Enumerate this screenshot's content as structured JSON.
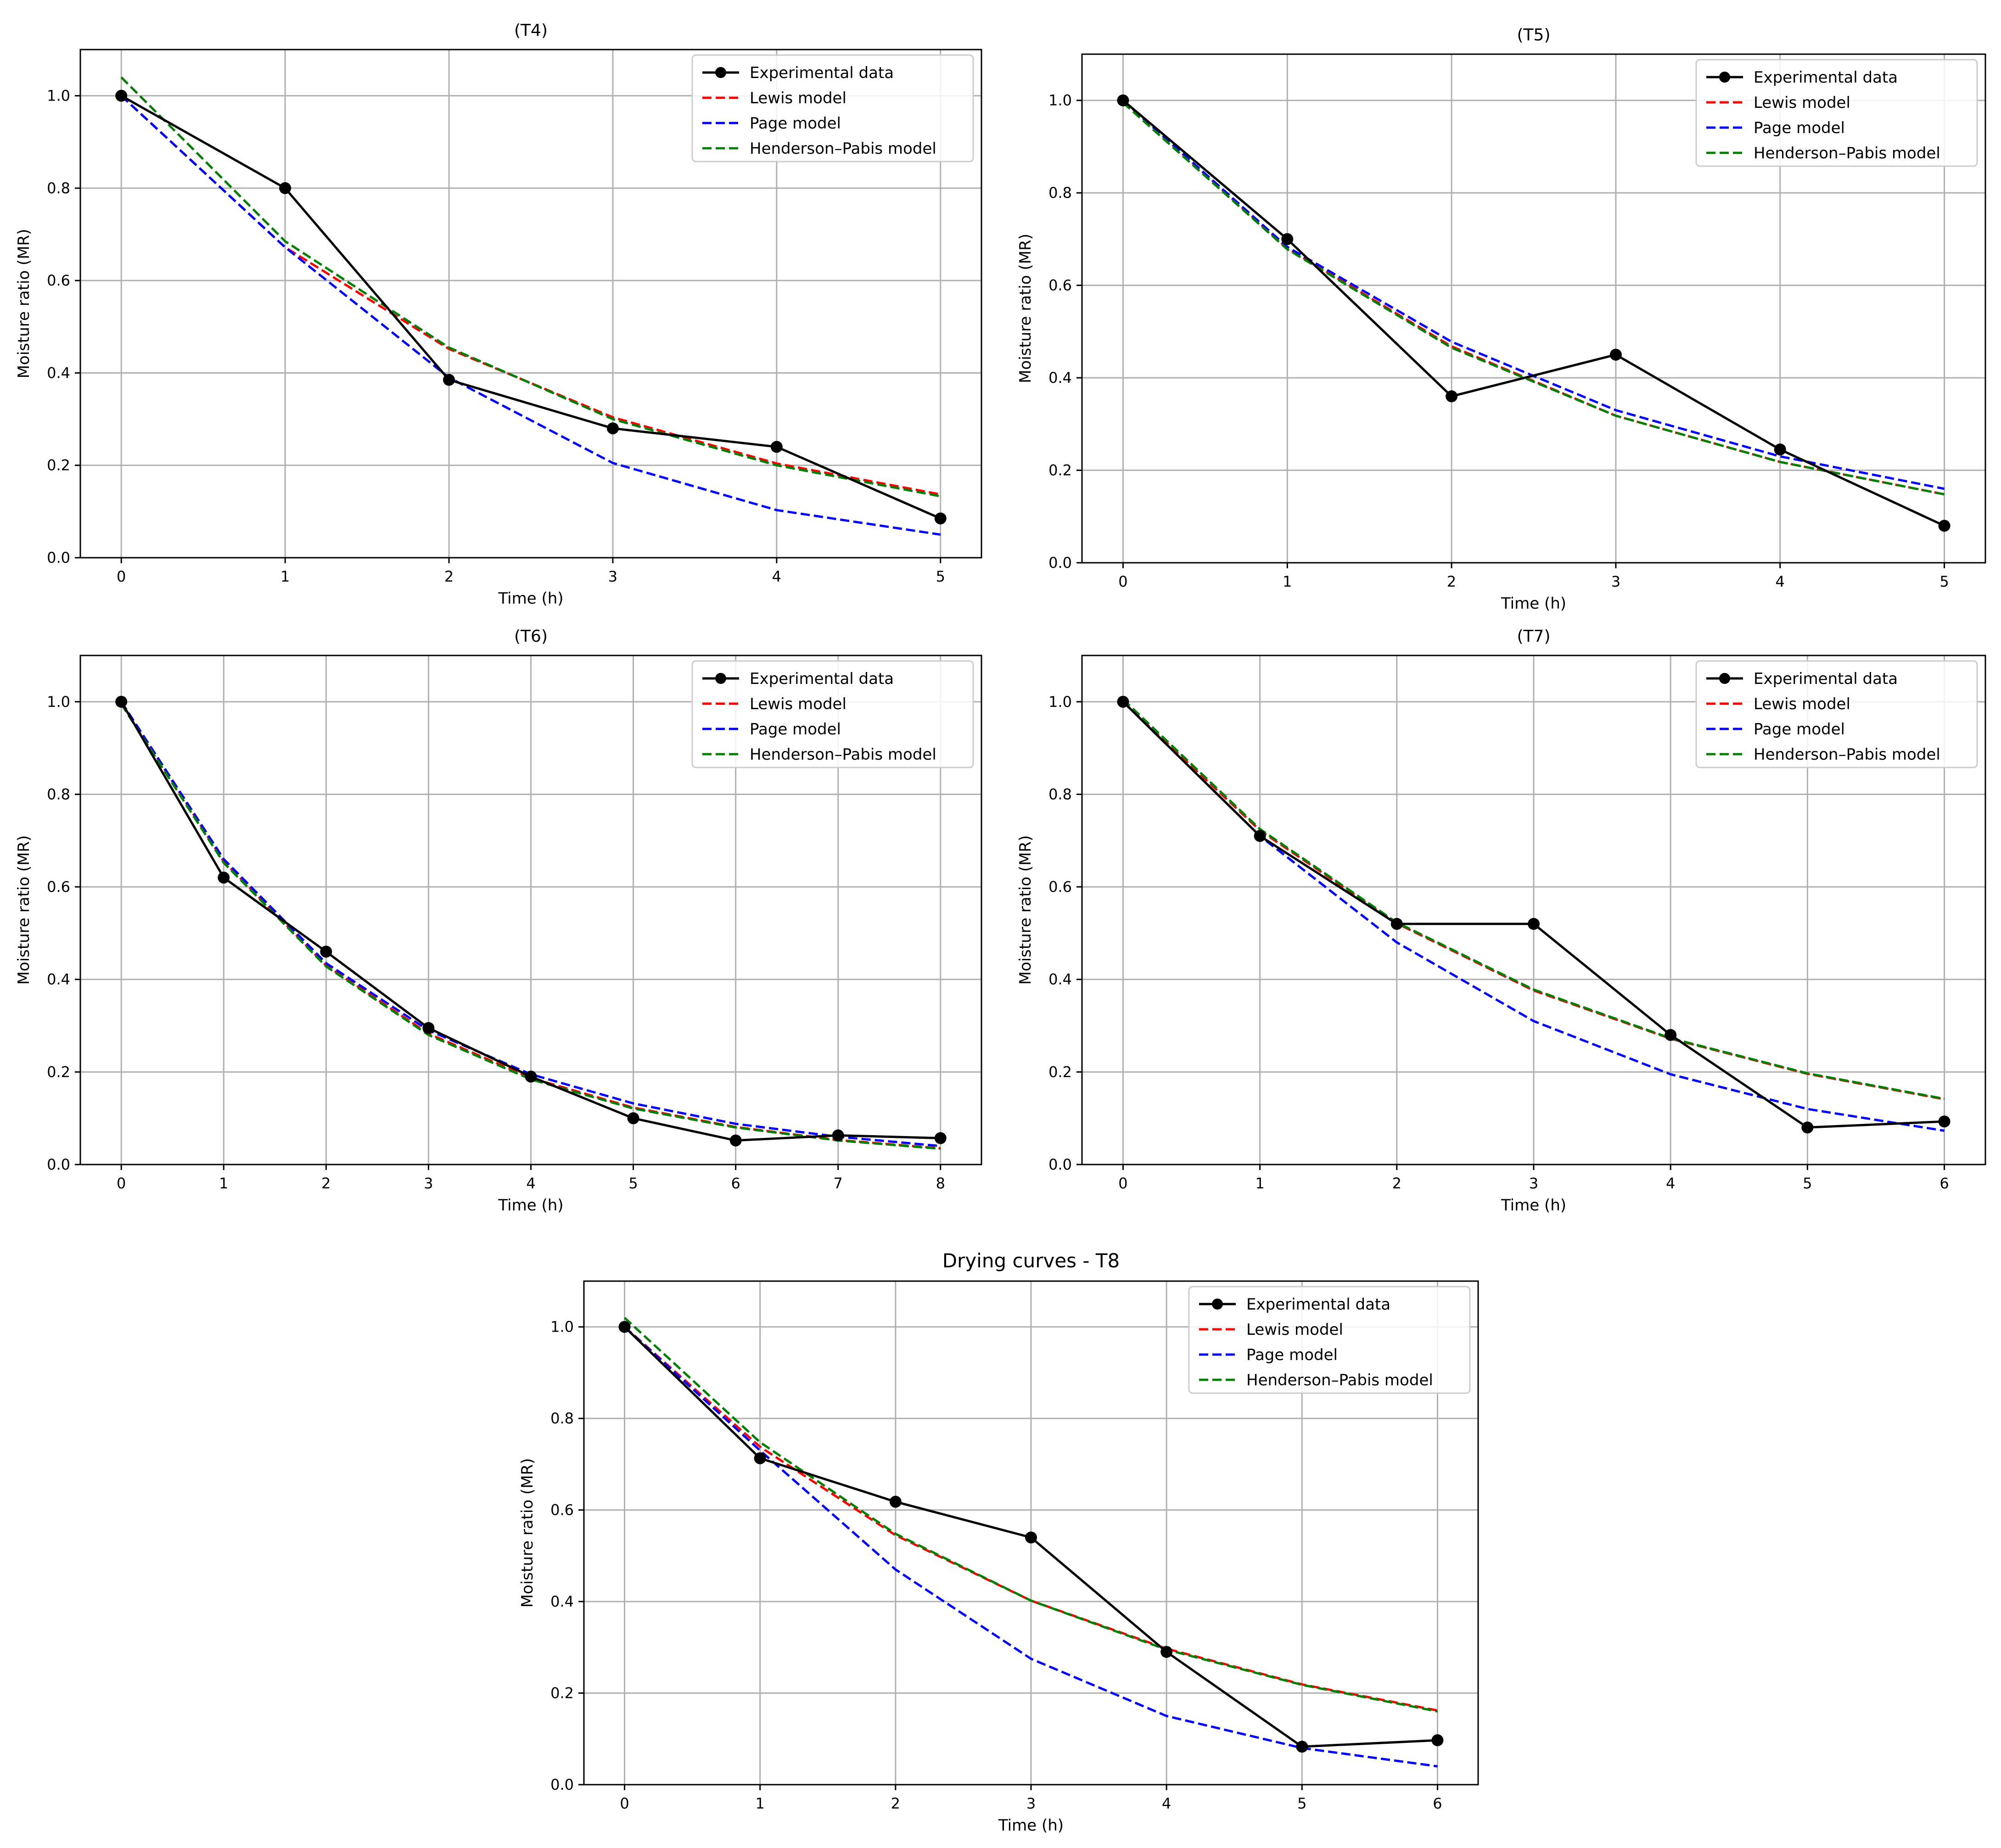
{
  "chart_data": [
    {
      "type": "line",
      "title": "(T4)",
      "xlabel": "Time (h)",
      "ylabel": "Moisture ratio (MR)",
      "xlim": [
        -0.25,
        5.25
      ],
      "ylim": [
        0,
        1.1
      ],
      "xticks": [
        "0",
        "1",
        "2",
        "3",
        "4",
        "5"
      ],
      "yticks": [
        "0.0",
        "0.2",
        "0.4",
        "0.6",
        "0.8",
        "1.0"
      ],
      "grid": true,
      "legend_position": "top-right",
      "x": [
        0,
        1,
        2,
        3,
        4,
        5
      ],
      "series": [
        {
          "name": "Experimental data",
          "style": "solid-marker",
          "color": "#000000",
          "values": [
            1.0,
            0.8,
            0.385,
            0.28,
            0.24,
            0.085
          ]
        },
        {
          "name": "Lewis model",
          "style": "dashed",
          "color": "#ff0000",
          "values": [
            1.0,
            0.672,
            0.452,
            0.304,
            0.204,
            0.137
          ]
        },
        {
          "name": "Page model",
          "style": "dashed",
          "color": "#0000ff",
          "values": [
            1.0,
            0.672,
            0.39,
            0.205,
            0.103,
            0.05
          ]
        },
        {
          "name": "Henderson–Pabis model",
          "style": "dashed",
          "color": "#008000",
          "values": [
            1.04,
            0.685,
            0.455,
            0.3,
            0.2,
            0.133
          ]
        }
      ]
    },
    {
      "type": "line",
      "title": "(T5)",
      "xlabel": "Time (h)",
      "ylabel": "Moisture ratio (MR)",
      "xlim": [
        -0.25,
        5.25
      ],
      "ylim": [
        0,
        1.1
      ],
      "xticks": [
        "0",
        "1",
        "2",
        "3",
        "4",
        "5"
      ],
      "yticks": [
        "0.0",
        "0.2",
        "0.4",
        "0.6",
        "0.8",
        "1.0"
      ],
      "grid": true,
      "legend_position": "top-right",
      "x": [
        0,
        1,
        2,
        3,
        4,
        5
      ],
      "series": [
        {
          "name": "Experimental data",
          "style": "solid-marker",
          "color": "#000000",
          "values": [
            1.0,
            0.7,
            0.36,
            0.45,
            0.245,
            0.08
          ]
        },
        {
          "name": "Lewis model",
          "style": "dashed",
          "color": "#ff0000",
          "values": [
            1.0,
            0.68,
            0.468,
            0.318,
            0.218,
            0.148
          ]
        },
        {
          "name": "Page model",
          "style": "dashed",
          "color": "#0000ff",
          "values": [
            1.0,
            0.683,
            0.478,
            0.33,
            0.23,
            0.16
          ]
        },
        {
          "name": "Henderson–Pabis model",
          "style": "dashed",
          "color": "#008000",
          "values": [
            0.995,
            0.678,
            0.465,
            0.318,
            0.218,
            0.148
          ]
        }
      ]
    },
    {
      "type": "line",
      "title": "(T6)",
      "xlabel": "Time (h)",
      "ylabel": "Moisture ratio (MR)",
      "xlim": [
        -0.4,
        8.4
      ],
      "ylim": [
        0,
        1.1
      ],
      "xticks": [
        "0",
        "1",
        "2",
        "3",
        "4",
        "5",
        "6",
        "7",
        "8"
      ],
      "yticks": [
        "0.0",
        "0.2",
        "0.4",
        "0.6",
        "0.8",
        "1.0"
      ],
      "grid": true,
      "legend_position": "top-right",
      "x": [
        0,
        1,
        2,
        3,
        4,
        5,
        6,
        7,
        8
      ],
      "series": [
        {
          "name": "Experimental data",
          "style": "solid-marker",
          "color": "#000000",
          "values": [
            1.0,
            0.62,
            0.46,
            0.295,
            0.19,
            0.1,
            0.052,
            0.063,
            0.057
          ]
        },
        {
          "name": "Lewis model",
          "style": "dashed",
          "color": "#ff0000",
          "values": [
            1.0,
            0.655,
            0.43,
            0.283,
            0.187,
            0.123,
            0.081,
            0.053,
            0.035
          ]
        },
        {
          "name": "Page model",
          "style": "dashed",
          "color": "#0000ff",
          "values": [
            1.0,
            0.66,
            0.435,
            0.29,
            0.195,
            0.132,
            0.088,
            0.06,
            0.04
          ]
        },
        {
          "name": "Henderson–Pabis model",
          "style": "dashed",
          "color": "#008000",
          "values": [
            0.995,
            0.652,
            0.428,
            0.28,
            0.184,
            0.121,
            0.08,
            0.052,
            0.034
          ]
        }
      ]
    },
    {
      "type": "line",
      "title": "(T7)",
      "xlabel": "Time (h)",
      "ylabel": "Moisture ratio (MR)",
      "xlim": [
        -0.3,
        6.3
      ],
      "ylim": [
        0,
        1.1
      ],
      "xticks": [
        "0",
        "1",
        "2",
        "3",
        "4",
        "5",
        "6"
      ],
      "yticks": [
        "0.0",
        "0.2",
        "0.4",
        "0.6",
        "0.8",
        "1.0"
      ],
      "grid": true,
      "legend_position": "top-right",
      "x": [
        0,
        1,
        2,
        3,
        4,
        5,
        6
      ],
      "series": [
        {
          "name": "Experimental data",
          "style": "solid-marker",
          "color": "#000000",
          "values": [
            1.0,
            0.71,
            0.52,
            0.52,
            0.28,
            0.08,
            0.093
          ]
        },
        {
          "name": "Lewis model",
          "style": "dashed",
          "color": "#ff0000",
          "values": [
            1.0,
            0.722,
            0.521,
            0.376,
            0.272,
            0.196,
            0.141
          ]
        },
        {
          "name": "Page model",
          "style": "dashed",
          "color": "#0000ff",
          "values": [
            1.0,
            0.71,
            0.48,
            0.31,
            0.195,
            0.12,
            0.073
          ]
        },
        {
          "name": "Henderson–Pabis model",
          "style": "dashed",
          "color": "#008000",
          "values": [
            1.005,
            0.725,
            0.523,
            0.378,
            0.273,
            0.197,
            0.142
          ]
        }
      ]
    },
    {
      "type": "line",
      "title": "Drying curves - T8",
      "xlabel": "Time (h)",
      "ylabel": "Moisture ratio (MR)",
      "xlim": [
        -0.3,
        6.3
      ],
      "ylim": [
        0,
        1.1
      ],
      "xticks": [
        "0",
        "1",
        "2",
        "3",
        "4",
        "5",
        "6"
      ],
      "yticks": [
        "0.0",
        "0.2",
        "0.4",
        "0.6",
        "0.8",
        "1.0"
      ],
      "grid": true,
      "legend_position": "top-right",
      "x": [
        0,
        1,
        2,
        3,
        4,
        5,
        6
      ],
      "series": [
        {
          "name": "Experimental data",
          "style": "solid-marker",
          "color": "#000000",
          "values": [
            1.0,
            0.713,
            0.618,
            0.54,
            0.29,
            0.083,
            0.097
          ]
        },
        {
          "name": "Lewis model",
          "style": "dashed",
          "color": "#ff0000",
          "values": [
            1.0,
            0.738,
            0.545,
            0.402,
            0.297,
            0.219,
            0.162
          ]
        },
        {
          "name": "Page model",
          "style": "dashed",
          "color": "#0000ff",
          "values": [
            1.0,
            0.73,
            0.47,
            0.275,
            0.15,
            0.08,
            0.04
          ]
        },
        {
          "name": "Henderson–Pabis model",
          "style": "dashed",
          "color": "#008000",
          "values": [
            1.02,
            0.748,
            0.548,
            0.402,
            0.295,
            0.218,
            0.16
          ]
        }
      ]
    }
  ]
}
